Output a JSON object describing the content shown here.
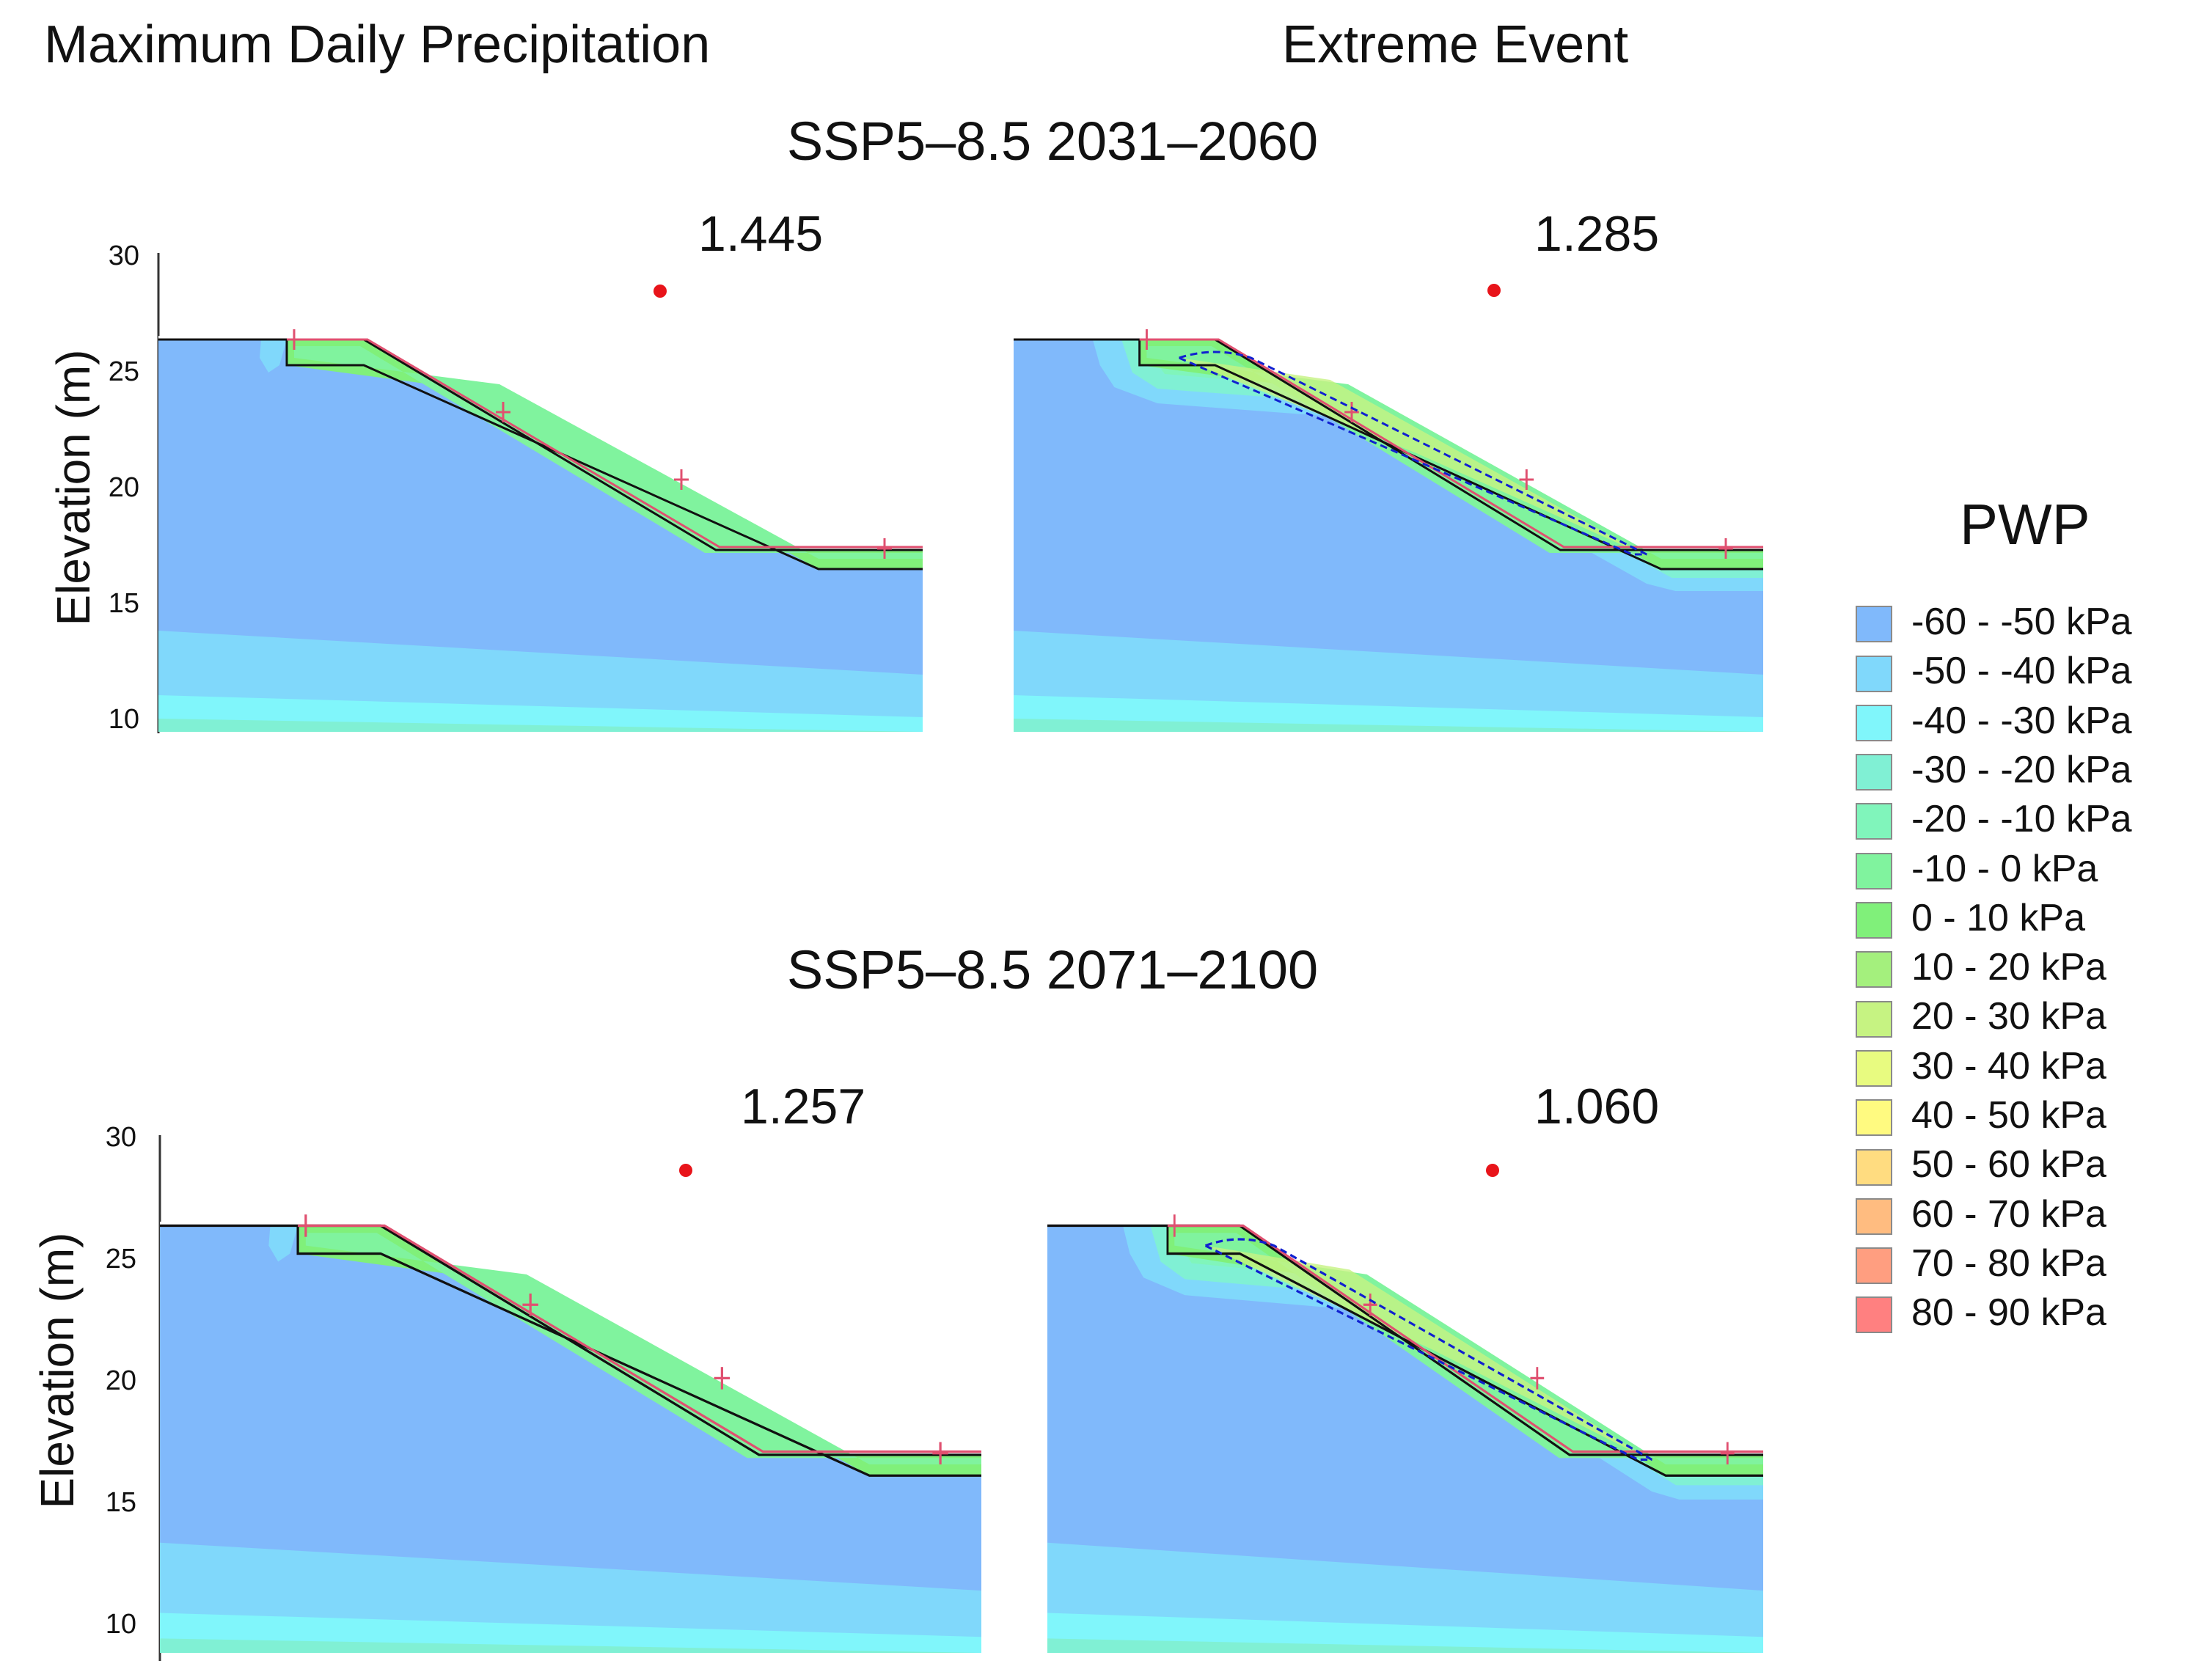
{
  "column_titles": {
    "left": "Maximum  Daily Precipitation",
    "right": "Extreme Event"
  },
  "periods": {
    "top": "SSP5–8.5 2031–2060",
    "bottom": "SSP5–8.5 2071–2100"
  },
  "factors_of_safety": {
    "top_left": "1.445",
    "top_right": "1.285",
    "bottom_left": "1.257",
    "bottom_right": "1.060"
  },
  "y_axis": {
    "label": "Elevation (m)",
    "ticks": [
      "30",
      "25",
      "20",
      "15",
      "10"
    ]
  },
  "legend": {
    "title": "PWP",
    "items": [
      {
        "label": "-60 - -50 kPa",
        "color": "#80b9fb"
      },
      {
        "label": "-50 - -40 kPa",
        "color": "#80d8fb"
      },
      {
        "label": "-40 - -30 kPa",
        "color": "#80f6fb"
      },
      {
        "label": "-30 - -20 kPa",
        "color": "#80f0d4"
      },
      {
        "label": "-20 - -10 kPa",
        "color": "#80f5bb"
      },
      {
        "label": "-10 - 0 kPa",
        "color": "#80f39e"
      },
      {
        "label": "0 - 10 kPa",
        "color": "#80f07a"
      },
      {
        "label": "10 - 20 kPa",
        "color": "#a4f07d"
      },
      {
        "label": "20 - 30 kPa",
        "color": "#c6f382"
      },
      {
        "label": "30 - 40 kPa",
        "color": "#e8fb80"
      },
      {
        "label": "40 - 50 kPa",
        "color": "#fffa80"
      },
      {
        "label": "50 - 60 kPa",
        "color": "#ffdc80"
      },
      {
        "label": "60 - 70 kPa",
        "color": "#ffbc80"
      },
      {
        "label": "70 - 80 kPa",
        "color": "#ff9e80"
      },
      {
        "label": "80 - 90 kPa",
        "color": "#ff8080"
      }
    ]
  }
}
